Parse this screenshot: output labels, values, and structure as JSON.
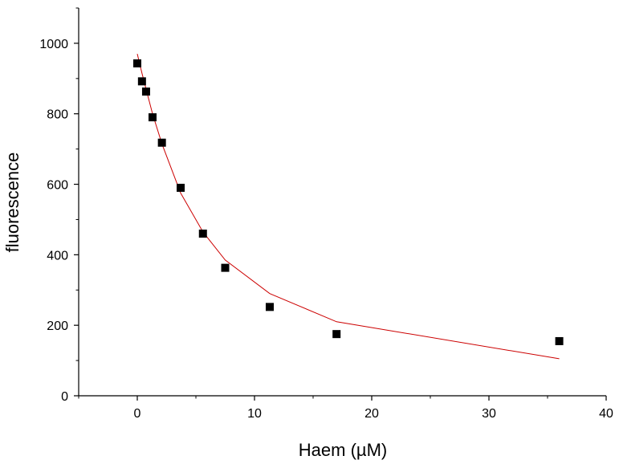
{
  "chart_data": {
    "type": "scatter",
    "title": "",
    "xlabel": "Haem (µM)",
    "ylabel": "fluorescence",
    "xlim": [
      -5,
      40
    ],
    "ylim": [
      0,
      1100
    ],
    "xticks": [
      0,
      10,
      20,
      30,
      40
    ],
    "yticks": [
      0,
      200,
      400,
      600,
      800,
      1000
    ],
    "grid": false,
    "legend": "none",
    "series": [
      {
        "kind": "scatter",
        "marker": "square",
        "color": "#000000",
        "x": [
          0,
          0.4,
          0.75,
          1.3,
          2.1,
          3.7,
          5.6,
          7.5,
          11.3,
          17.0,
          36.0
        ],
        "y": [
          943,
          892,
          863,
          790,
          718,
          590,
          460,
          363,
          252,
          175,
          155
        ]
      },
      {
        "kind": "line",
        "color": "#cc0000",
        "x": [
          0,
          0.4,
          0.75,
          1.3,
          2.1,
          3.7,
          5.6,
          7.5,
          11.3,
          17.0,
          36.0
        ],
        "y": [
          970,
          915,
          870,
          800,
          715,
          575,
          465,
          385,
          290,
          210,
          105
        ]
      }
    ]
  }
}
